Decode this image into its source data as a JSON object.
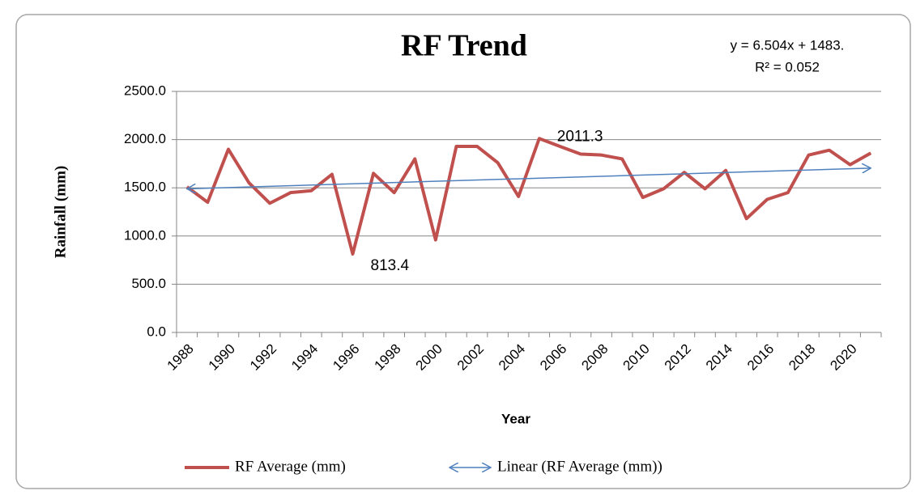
{
  "chart_data": {
    "type": "line",
    "title": "RF Trend",
    "x_label": "Year",
    "y_label": "Rainfall (mm)",
    "annotations": [
      "y = 6.504x + 1483.",
      "R² = 0.052"
    ],
    "categories": [
      "1988",
      null,
      "1990",
      null,
      "1992",
      null,
      "1994",
      null,
      "1996",
      null,
      "1998",
      null,
      "2000",
      null,
      "2002",
      null,
      "2004",
      null,
      "2006",
      null,
      "2008",
      null,
      "2010",
      null,
      "2012",
      null,
      "2014",
      null,
      "2016",
      null,
      "2018",
      null,
      "2020",
      null
    ],
    "series": [
      {
        "name": "RF Average (mm)",
        "color": "#c0504d",
        "values": [
          1510,
          1350,
          1900,
          1550,
          1340,
          1450,
          1470,
          1640,
          813.4,
          1650,
          1450,
          1800,
          960,
          1930,
          1930,
          1760,
          1410,
          2011.3,
          1930,
          1850,
          1840,
          1800,
          1400,
          1490,
          1660,
          1490,
          1680,
          1180,
          1380,
          1450,
          1840,
          1890,
          1740,
          1860
        ],
        "value_labels": [
          null,
          null,
          null,
          null,
          null,
          null,
          null,
          null,
          "813.4",
          null,
          null,
          null,
          null,
          null,
          null,
          null,
          null,
          "2011.3",
          null,
          null,
          null,
          null,
          null,
          null,
          null,
          null,
          null,
          null,
          null,
          null,
          null,
          null,
          null,
          null
        ]
      }
    ],
    "trendline": {
      "name": "Linear (RF Average (mm))",
      "color": "#4f81bd",
      "start": 1489.5,
      "end": 1704.1
    },
    "ylim": [
      0,
      2500
    ],
    "yticks": [
      {
        "value": 0,
        "label": "0.0"
      },
      {
        "value": 500,
        "label": "500.0"
      },
      {
        "value": 1000,
        "label": "1000.0"
      },
      {
        "value": 1500,
        "label": "1500.0"
      },
      {
        "value": 2000,
        "label": "2000.0"
      },
      {
        "value": 2500,
        "label": "2500.0"
      }
    ],
    "grid": true,
    "legend": "bottom"
  }
}
